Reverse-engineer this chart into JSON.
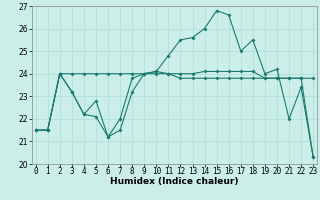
{
  "title": "",
  "xlabel": "Humidex (Indice chaleur)",
  "bg_color": "#cceee8",
  "line_color": "#1a7a6e",
  "grid_color": "#aaddda",
  "xlim": [
    0,
    23
  ],
  "ylim": [
    20,
    27
  ],
  "xticks": [
    0,
    1,
    2,
    3,
    4,
    5,
    6,
    7,
    8,
    9,
    10,
    11,
    12,
    13,
    14,
    15,
    16,
    17,
    18,
    19,
    20,
    21,
    22,
    23
  ],
  "yticks": [
    20,
    21,
    22,
    23,
    24,
    25,
    26,
    27
  ],
  "series1": [
    21.5,
    21.5,
    24.0,
    23.2,
    22.2,
    22.1,
    21.2,
    21.5,
    23.2,
    24.0,
    24.1,
    24.8,
    25.5,
    25.6,
    26.0,
    26.8,
    26.6,
    25.0,
    25.5,
    24.0,
    24.2,
    22.0,
    23.4,
    20.3
  ],
  "series2": [
    21.5,
    21.5,
    24.0,
    24.0,
    24.0,
    24.0,
    24.0,
    24.0,
    24.0,
    24.0,
    24.0,
    24.0,
    24.0,
    24.0,
    24.1,
    24.1,
    24.1,
    24.1,
    24.1,
    23.8,
    23.8,
    23.8,
    23.8,
    23.8
  ],
  "series3": [
    21.5,
    21.5,
    24.0,
    23.2,
    22.2,
    22.8,
    21.2,
    22.0,
    23.8,
    24.0,
    24.1,
    24.0,
    23.8,
    23.8,
    23.8,
    23.8,
    23.8,
    23.8,
    23.8,
    23.8,
    23.8,
    23.8,
    23.8,
    20.3
  ],
  "markersize": 2.0,
  "linewidth": 0.8,
  "tick_fontsize": 5.5,
  "xlabel_fontsize": 6.5
}
